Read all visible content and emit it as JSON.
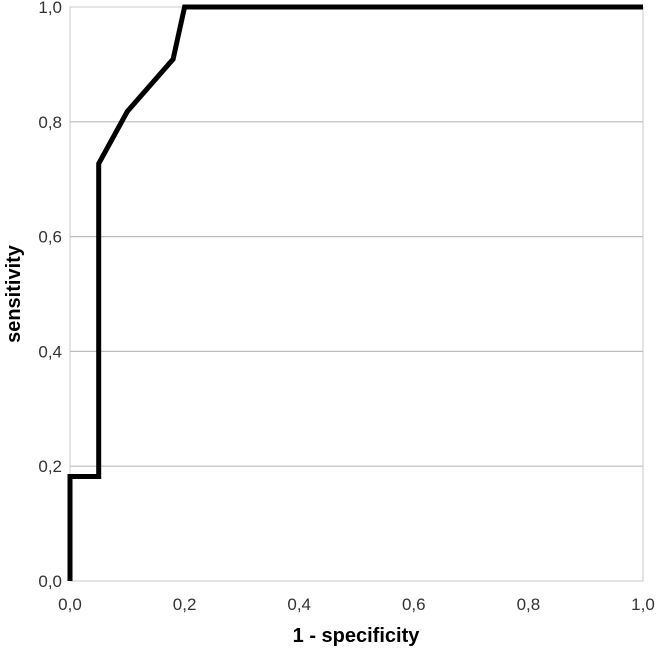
{
  "chart_data": {
    "type": "line",
    "title": "",
    "xlabel": "1 - specificity",
    "ylabel": "sensitivity",
    "xlim": [
      0,
      1
    ],
    "ylim": [
      0,
      1
    ],
    "x_ticks": [
      "0,0",
      "0,2",
      "0,4",
      "0,6",
      "0,8",
      "1,0"
    ],
    "y_ticks": [
      "0,0",
      "0,2",
      "0,4",
      "0,6",
      "0,8",
      "1,0"
    ],
    "grid": "horizontal",
    "series": [
      {
        "color": "#000000",
        "x": [
          0.0,
          0.0,
          0.05,
          0.05,
          0.1,
          0.18,
          0.2,
          1.0
        ],
        "y": [
          0.0,
          0.182,
          0.182,
          0.727,
          0.818,
          0.909,
          1.0,
          1.0
        ]
      }
    ]
  }
}
